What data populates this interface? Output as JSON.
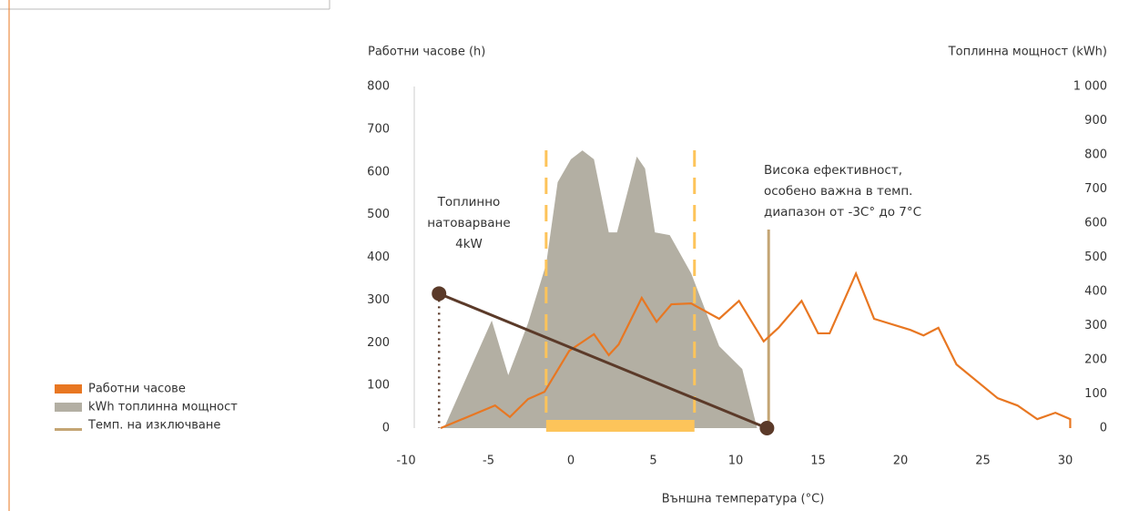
{
  "chart_data": {
    "type": "line",
    "xlabel": "Външна температура (°C)",
    "ylabel": "Работни часове (h)",
    "y2label": "Топлинна мощност (kWh)",
    "xlim": [
      -10,
      30
    ],
    "xticks": [
      -10,
      -5,
      0,
      5,
      10,
      15,
      20,
      25,
      30
    ],
    "ylim": [
      0,
      800
    ],
    "yticks": [
      0,
      100,
      200,
      300,
      400,
      500,
      600,
      700,
      800
    ],
    "y2lim": [
      0,
      1000
    ],
    "y2ticks": [
      0,
      100,
      200,
      300,
      400,
      500,
      600,
      700,
      800,
      900,
      {
        "value": 1000,
        "label": "1 000"
      }
    ],
    "series": [
      {
        "name": "Работни часове",
        "color": "#e87722",
        "kind": "line",
        "x": [
          -7.9,
          -4.6,
          -3.7,
          -2.6,
          -1.6,
          -0.1,
          1.4,
          2.3,
          2.9,
          4.3,
          5.2,
          6.1,
          7.3,
          9.0,
          10.2,
          11.7,
          12.6,
          14.0,
          15.0,
          15.7,
          17.3,
          18.4,
          20.6,
          21.4,
          22.3,
          23.4,
          25.9,
          27.1,
          28.3,
          29.4,
          30.3,
          30.3
        ],
        "values": [
          0,
          53,
          26,
          68,
          85,
          181,
          220,
          171,
          196,
          305,
          249,
          290,
          292,
          256,
          298,
          203,
          235,
          298,
          222,
          222,
          362,
          256,
          230,
          217,
          235,
          149,
          70,
          53,
          21,
          36,
          21,
          0
        ]
      },
      {
        "name": "kWh топлинна мощност",
        "color": "#b3afa3",
        "kind": "area",
        "axis": "y2",
        "x": [
          -7.7,
          -4.8,
          -3.8,
          -2.6,
          -1.5,
          -0.8,
          0,
          0.7,
          1.4,
          2.3,
          2.8,
          4.0,
          4.5,
          5.1,
          6.0,
          7.3,
          9.0,
          10.4,
          11.3
        ],
        "values": [
          0,
          315,
          155,
          307,
          480,
          720,
          787,
          813,
          787,
          573,
          573,
          795,
          760,
          573,
          565,
          453,
          240,
          173,
          0
        ]
      },
      {
        "name": "Темп. на изключване",
        "color": "#c4a574",
        "kind": "vline",
        "x": [
          12
        ],
        "values": [
          470
        ]
      }
    ],
    "heat_load": {
      "label": [
        "Топлинно",
        "натоварване",
        "4kW"
      ],
      "color": "#5b3a29",
      "x": [
        -8,
        11.9
      ],
      "values": [
        315,
        0
      ]
    },
    "efficiency_range": {
      "label": [
        "Висока ефективност,",
        "особено важна в темп.",
        "диапазон от -3C° до 7°C"
      ],
      "color": "#fdc45a",
      "x": [
        -1.5,
        7.5
      ]
    }
  }
}
